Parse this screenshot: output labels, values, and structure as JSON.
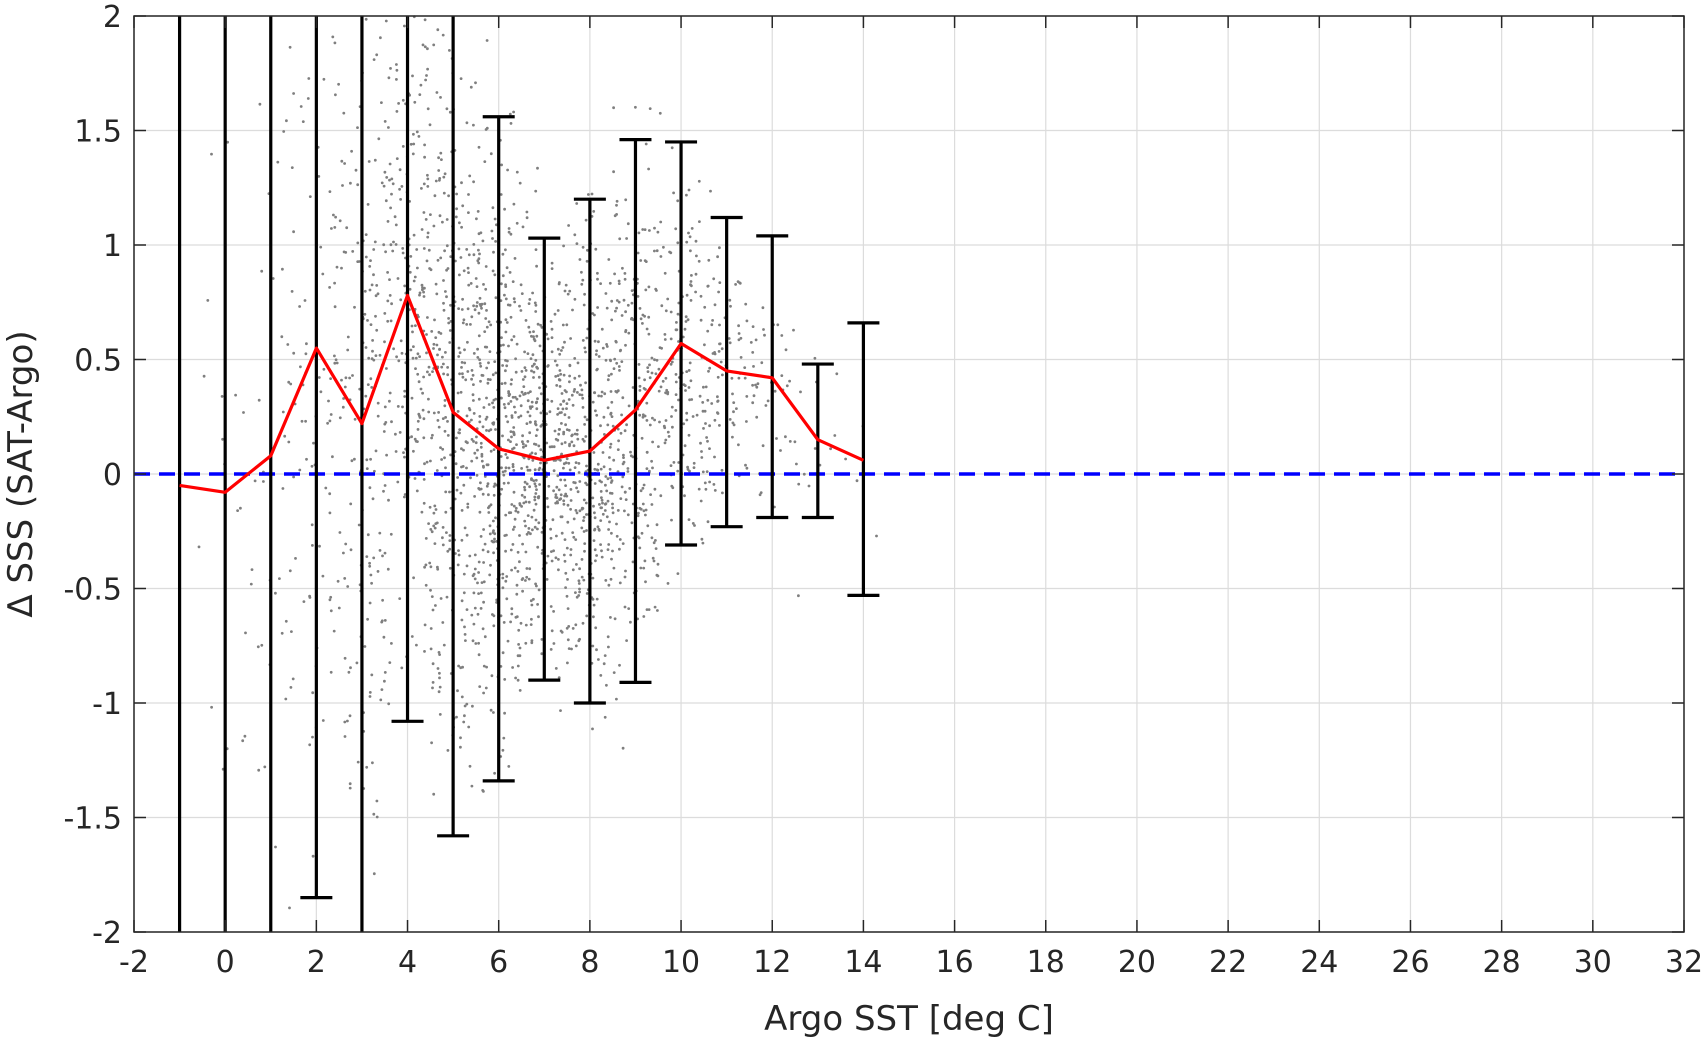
{
  "chart_data": {
    "type": "scatter",
    "title": "",
    "xlabel": "Argo SST [deg C]",
    "ylabel": "Δ SSS (SAT-Argo)",
    "xlim": [
      -2,
      32
    ],
    "ylim": [
      -2,
      2
    ],
    "xticks": [
      -2,
      0,
      2,
      4,
      6,
      8,
      10,
      12,
      14,
      16,
      18,
      20,
      22,
      24,
      26,
      28,
      30,
      32
    ],
    "xtick_labels": [
      "-2",
      "0",
      "2",
      "4",
      "6",
      "8",
      "10",
      "12",
      "14",
      "16",
      "18",
      "20",
      "22",
      "24",
      "26",
      "28",
      "30",
      "32"
    ],
    "yticks": [
      -2,
      -1.5,
      -1,
      -0.5,
      0,
      0.5,
      1,
      1.5,
      2
    ],
    "ytick_labels": [
      "-2",
      "-1.5",
      "-1",
      "-0.5",
      "0",
      "0.5",
      "1",
      "1.5",
      "2"
    ],
    "grid": true,
    "colors": {
      "scatter": "#7f7f7f",
      "mean_line": "#ff0000",
      "error_bars": "#000000",
      "zero_line": "#0000ff"
    },
    "series": [
      {
        "kind": "mean-with-errorbars",
        "x": [
          -1,
          0,
          1,
          2,
          3,
          4,
          5,
          6,
          7,
          8,
          9,
          10,
          11,
          12,
          13,
          14
        ],
        "mean": [
          -0.05,
          -0.08,
          0.08,
          0.55,
          0.22,
          0.78,
          0.27,
          0.11,
          0.06,
          0.1,
          0.28,
          0.57,
          0.45,
          0.42,
          0.15,
          0.06
        ],
        "lower": [
          -2,
          -2,
          -2,
          -1.85,
          -2,
          -1.08,
          -1.58,
          -1.34,
          -0.9,
          -1,
          -0.91,
          -0.31,
          -0.23,
          -0.19,
          -0.19,
          -0.53
        ],
        "upper": [
          2,
          2,
          2,
          2,
          2,
          2,
          2,
          1.56,
          1.03,
          1.2,
          1.46,
          1.45,
          1.12,
          1.04,
          0.48,
          0.66
        ]
      },
      {
        "kind": "reference-line",
        "y": 0,
        "style": "dashed"
      },
      {
        "kind": "scatter-cloud",
        "x_range": [
          -1.5,
          15
        ],
        "density_peak_x": 6.5,
        "y_range": [
          -2,
          2
        ]
      }
    ]
  }
}
